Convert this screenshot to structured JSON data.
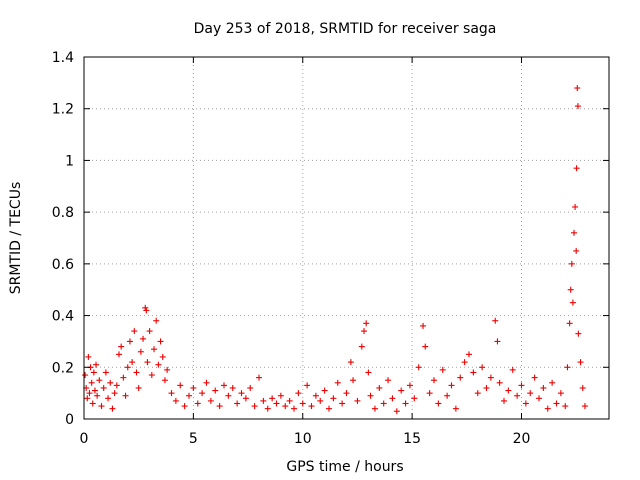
{
  "chart_data": {
    "type": "scatter",
    "title": "Day 253 of 2018, SRMTID for receiver saga",
    "xlabel": "GPS time / hours",
    "ylabel": "SRMTID / TECUs",
    "xlim": [
      0,
      24
    ],
    "ylim": [
      0,
      1.4
    ],
    "x_ticks": [
      0,
      5,
      10,
      15,
      20
    ],
    "x_tick_labels": [
      "0",
      "5",
      "10",
      "15",
      "20"
    ],
    "y_ticks": [
      0,
      0.2,
      0.4,
      0.6,
      0.8,
      1.0,
      1.2,
      1.4
    ],
    "y_tick_labels": [
      "0",
      "0.2",
      "0.4",
      "0.6",
      "0.8",
      "1",
      "1.2",
      "1.4"
    ],
    "grid": true,
    "marker": "+",
    "color": "#ee0000",
    "series": [
      {
        "name": "SRMTID",
        "points": [
          [
            0.05,
            0.17
          ],
          [
            0.1,
            0.12
          ],
          [
            0.15,
            0.08
          ],
          [
            0.2,
            0.24
          ],
          [
            0.25,
            0.1
          ],
          [
            0.3,
            0.2
          ],
          [
            0.35,
            0.14
          ],
          [
            0.4,
            0.06
          ],
          [
            0.45,
            0.18
          ],
          [
            0.5,
            0.11
          ],
          [
            0.55,
            0.21
          ],
          [
            0.6,
            0.09
          ],
          [
            0.7,
            0.15
          ],
          [
            0.8,
            0.05
          ],
          [
            0.9,
            0.12
          ],
          [
            1.0,
            0.18
          ],
          [
            1.1,
            0.08
          ],
          [
            1.2,
            0.14
          ],
          [
            1.3,
            0.04
          ],
          [
            1.4,
            0.1
          ],
          [
            1.5,
            0.13
          ],
          [
            1.6,
            0.25
          ],
          [
            1.7,
            0.28
          ],
          [
            1.8,
            0.16
          ],
          [
            1.9,
            0.09
          ],
          [
            2.0,
            0.2
          ],
          [
            2.1,
            0.3
          ],
          [
            2.2,
            0.22
          ],
          [
            2.3,
            0.34
          ],
          [
            2.4,
            0.18
          ],
          [
            2.5,
            0.12
          ],
          [
            2.6,
            0.26
          ],
          [
            2.7,
            0.31
          ],
          [
            2.8,
            0.43
          ],
          [
            2.85,
            0.42
          ],
          [
            2.9,
            0.22
          ],
          [
            3.0,
            0.34
          ],
          [
            3.1,
            0.17
          ],
          [
            3.2,
            0.27
          ],
          [
            3.3,
            0.38
          ],
          [
            3.4,
            0.21
          ],
          [
            3.5,
            0.3
          ],
          [
            3.6,
            0.24
          ],
          [
            3.7,
            0.15
          ],
          [
            3.8,
            0.19
          ],
          [
            4.0,
            0.1
          ],
          [
            4.2,
            0.07
          ],
          [
            4.4,
            0.13
          ],
          [
            4.6,
            0.05
          ],
          [
            4.8,
            0.09
          ],
          [
            5.0,
            0.12
          ],
          [
            5.2,
            0.06
          ],
          [
            5.4,
            0.1
          ],
          [
            5.6,
            0.14
          ],
          [
            5.8,
            0.07
          ],
          [
            6.0,
            0.11
          ],
          [
            6.2,
            0.05
          ],
          [
            6.4,
            0.13
          ],
          [
            6.6,
            0.09
          ],
          [
            6.8,
            0.12
          ],
          [
            7.0,
            0.06
          ],
          [
            7.2,
            0.1
          ],
          [
            7.4,
            0.08
          ],
          [
            7.6,
            0.12
          ],
          [
            7.8,
            0.05
          ],
          [
            8.0,
            0.16
          ],
          [
            8.2,
            0.07
          ],
          [
            8.4,
            0.04
          ],
          [
            8.6,
            0.08
          ],
          [
            8.8,
            0.06
          ],
          [
            9.0,
            0.09
          ],
          [
            9.2,
            0.05
          ],
          [
            9.4,
            0.07
          ],
          [
            9.6,
            0.04
          ],
          [
            9.8,
            0.1
          ],
          [
            10.0,
            0.06
          ],
          [
            10.2,
            0.13
          ],
          [
            10.4,
            0.05
          ],
          [
            10.6,
            0.09
          ],
          [
            10.8,
            0.07
          ],
          [
            11.0,
            0.11
          ],
          [
            11.2,
            0.04
          ],
          [
            11.4,
            0.08
          ],
          [
            11.6,
            0.14
          ],
          [
            11.8,
            0.06
          ],
          [
            12.0,
            0.1
          ],
          [
            12.2,
            0.22
          ],
          [
            12.3,
            0.15
          ],
          [
            12.5,
            0.07
          ],
          [
            12.7,
            0.28
          ],
          [
            12.8,
            0.34
          ],
          [
            12.9,
            0.37
          ],
          [
            13.0,
            0.18
          ],
          [
            13.1,
            0.09
          ],
          [
            13.3,
            0.04
          ],
          [
            13.5,
            0.12
          ],
          [
            13.7,
            0.06
          ],
          [
            13.9,
            0.15
          ],
          [
            14.1,
            0.08
          ],
          [
            14.3,
            0.03
          ],
          [
            14.5,
            0.11
          ],
          [
            14.7,
            0.06
          ],
          [
            14.9,
            0.13
          ],
          [
            15.1,
            0.08
          ],
          [
            15.3,
            0.2
          ],
          [
            15.5,
            0.36
          ],
          [
            15.6,
            0.28
          ],
          [
            15.8,
            0.1
          ],
          [
            16.0,
            0.15
          ],
          [
            16.2,
            0.06
          ],
          [
            16.4,
            0.19
          ],
          [
            16.6,
            0.09
          ],
          [
            16.8,
            0.13
          ],
          [
            17.0,
            0.04
          ],
          [
            17.2,
            0.16
          ],
          [
            17.4,
            0.22
          ],
          [
            17.6,
            0.25
          ],
          [
            17.8,
            0.18
          ],
          [
            18.0,
            0.1
          ],
          [
            18.2,
            0.2
          ],
          [
            18.4,
            0.12
          ],
          [
            18.6,
            0.16
          ],
          [
            18.8,
            0.38
          ],
          [
            18.9,
            0.3
          ],
          [
            19.0,
            0.14
          ],
          [
            19.2,
            0.07
          ],
          [
            19.4,
            0.11
          ],
          [
            19.6,
            0.19
          ],
          [
            19.8,
            0.09
          ],
          [
            20.0,
            0.13
          ],
          [
            20.2,
            0.06
          ],
          [
            20.4,
            0.1
          ],
          [
            20.6,
            0.16
          ],
          [
            20.8,
            0.08
          ],
          [
            21.0,
            0.12
          ],
          [
            21.2,
            0.04
          ],
          [
            21.4,
            0.14
          ],
          [
            21.6,
            0.06
          ],
          [
            21.8,
            0.1
          ],
          [
            22.0,
            0.05
          ],
          [
            22.1,
            0.2
          ],
          [
            22.2,
            0.37
          ],
          [
            22.25,
            0.5
          ],
          [
            22.3,
            0.6
          ],
          [
            22.35,
            0.45
          ],
          [
            22.4,
            0.72
          ],
          [
            22.45,
            0.82
          ],
          [
            22.5,
            0.65
          ],
          [
            22.52,
            0.97
          ],
          [
            22.55,
            1.28
          ],
          [
            22.58,
            1.21
          ],
          [
            22.6,
            0.33
          ],
          [
            22.7,
            0.22
          ],
          [
            22.8,
            0.12
          ],
          [
            22.9,
            0.05
          ]
        ]
      }
    ]
  }
}
